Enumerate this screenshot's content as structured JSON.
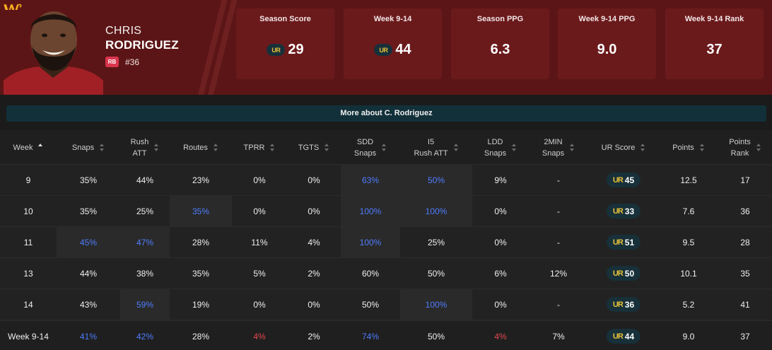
{
  "player": {
    "first_name": "CHRIS",
    "last_name": "RODRIGUEZ",
    "position": "RB",
    "jersey": "#36",
    "team_logo_icon": "team-w-logo-icon",
    "colors": {
      "header_bg": "#5c1516",
      "card_bg": "#6b1a1c",
      "position_badge": "#d9364d",
      "ur_gold": "#e8c23a"
    }
  },
  "stat_cards": [
    {
      "label": "Season Score",
      "value": "29",
      "ur_badge": true,
      "badge_text": "UR"
    },
    {
      "label": "Week 9-14",
      "value": "44",
      "ur_badge": true,
      "badge_text": "UR"
    },
    {
      "label": "Season PPG",
      "value": "6.3",
      "ur_badge": false
    },
    {
      "label": "Week 9-14 PPG",
      "value": "9.0",
      "ur_badge": false
    },
    {
      "label": "Week 9-14 Rank",
      "value": "37",
      "ur_badge": false
    }
  ],
  "more_button": {
    "label": "More about C. Rodriguez"
  },
  "table": {
    "columns": [
      {
        "line1": "Week",
        "line2": "",
        "sort": "asc"
      },
      {
        "line1": "Snaps",
        "line2": "",
        "sort": "none"
      },
      {
        "line1": "Rush",
        "line2": "ATT",
        "sort": "none"
      },
      {
        "line1": "Routes",
        "line2": "",
        "sort": "none"
      },
      {
        "line1": "TPRR",
        "line2": "",
        "sort": "none"
      },
      {
        "line1": "TGTS",
        "line2": "",
        "sort": "none"
      },
      {
        "line1": "SDD",
        "line2": "Snaps",
        "sort": "none"
      },
      {
        "line1": "I5",
        "line2": "Rush ATT",
        "sort": "none"
      },
      {
        "line1": "LDD",
        "line2": "Snaps",
        "sort": "none"
      },
      {
        "line1": "2MIN",
        "line2": "Snaps",
        "sort": "none"
      },
      {
        "line1": "UR Score",
        "line2": "",
        "sort": "none"
      },
      {
        "line1": "Points",
        "line2": "",
        "sort": "none"
      },
      {
        "line1": "Points",
        "line2": "Rank",
        "sort": "none"
      }
    ],
    "ur_badge_text": "UR",
    "rows": [
      {
        "week": "9",
        "snaps": "35%",
        "rush_att": "44%",
        "routes": "23%",
        "tprr": "0%",
        "tgts": "0%",
        "sdd": "63%",
        "i5": "50%",
        "ldd": "9%",
        "two_min": "-",
        "ur_score": "45",
        "points": "12.5",
        "rank": "17"
      },
      {
        "week": "10",
        "snaps": "35%",
        "rush_att": "25%",
        "routes": "35%",
        "tprr": "0%",
        "tgts": "0%",
        "sdd": "100%",
        "i5": "100%",
        "ldd": "0%",
        "two_min": "-",
        "ur_score": "33",
        "points": "7.6",
        "rank": "36"
      },
      {
        "week": "11",
        "snaps": "45%",
        "rush_att": "47%",
        "routes": "28%",
        "tprr": "11%",
        "tgts": "4%",
        "sdd": "100%",
        "i5": "25%",
        "ldd": "0%",
        "two_min": "-",
        "ur_score": "51",
        "points": "9.5",
        "rank": "28"
      },
      {
        "week": "13",
        "snaps": "44%",
        "rush_att": "38%",
        "routes": "35%",
        "tprr": "5%",
        "tgts": "2%",
        "sdd": "60%",
        "i5": "50%",
        "ldd": "6%",
        "two_min": "12%",
        "ur_score": "50",
        "points": "10.1",
        "rank": "35"
      },
      {
        "week": "14",
        "snaps": "43%",
        "rush_att": "59%",
        "routes": "19%",
        "tprr": "0%",
        "tgts": "0%",
        "sdd": "50%",
        "i5": "100%",
        "ldd": "0%",
        "two_min": "-",
        "ur_score": "36",
        "points": "5.2",
        "rank": "41"
      }
    ],
    "total": {
      "week": "Week 9-14",
      "snaps": "41%",
      "rush_att": "42%",
      "routes": "28%",
      "tprr": "4%",
      "tgts": "2%",
      "sdd": "74%",
      "i5": "50%",
      "ldd": "4%",
      "two_min": "7%",
      "ur_score": "44",
      "points": "9.0",
      "rank": "37"
    }
  }
}
